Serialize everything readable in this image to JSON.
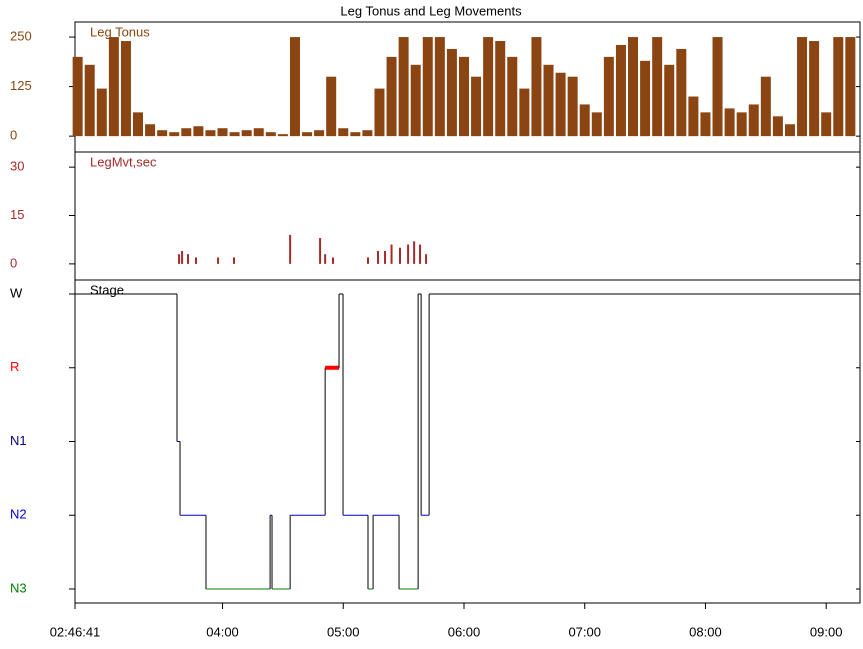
{
  "chart_data": [
    {
      "type": "bar",
      "title": "Leg Tonus and Leg Movements",
      "series": [
        {
          "name": "Leg Tonus",
          "color": "#8b4513",
          "x": [
            2.8,
            2.9,
            3.0,
            3.1,
            3.2,
            3.3,
            3.4,
            3.5,
            3.6,
            3.7,
            3.8,
            3.9,
            4.0,
            4.1,
            4.2,
            4.3,
            4.4,
            4.5,
            4.6,
            4.7,
            4.8,
            4.9,
            5.0,
            5.1,
            5.2,
            5.3,
            5.4,
            5.5,
            5.6,
            5.7,
            5.8,
            5.9,
            6.0,
            6.1,
            6.2,
            6.3,
            6.4,
            6.5,
            6.6,
            6.7,
            6.8,
            6.9,
            7.0,
            7.1,
            7.2,
            7.3,
            7.4,
            7.5,
            7.6,
            7.7,
            7.8,
            7.9,
            8.0,
            8.1,
            8.2,
            8.3,
            8.4,
            8.5,
            8.6,
            8.7,
            8.8,
            8.9,
            9.0,
            9.1,
            9.2
          ],
          "values": [
            200,
            180,
            120,
            250,
            240,
            60,
            30,
            15,
            10,
            20,
            25,
            15,
            20,
            10,
            15,
            20,
            10,
            5,
            250,
            10,
            15,
            150,
            20,
            10,
            15,
            120,
            200,
            250,
            180,
            250,
            250,
            220,
            200,
            150,
            250,
            240,
            200,
            120,
            250,
            180,
            160,
            150,
            80,
            60,
            200,
            230,
            250,
            190,
            250,
            180,
            220,
            100,
            60,
            250,
            70,
            60,
            80,
            150,
            50,
            30,
            250,
            240,
            60,
            250,
            250
          ]
        }
      ],
      "ylim": [
        -40,
        288
      ],
      "yticks": [
        0,
        125,
        250
      ]
    },
    {
      "type": "bar",
      "series": [
        {
          "name": "LegMvt,sec",
          "color": "#a52a2a",
          "x": [
            3.64,
            3.665,
            3.714,
            3.78,
            3.963,
            4.095,
            4.56,
            4.808,
            4.85,
            4.915,
            5.205,
            5.288,
            5.346,
            5.4,
            5.47,
            5.537,
            5.587,
            5.636,
            5.686
          ],
          "values": [
            3,
            4,
            3,
            2,
            2,
            2,
            9,
            8,
            3,
            2,
            2,
            4,
            4,
            6,
            5,
            6,
            7,
            6,
            3
          ]
        }
      ],
      "ylim": [
        -5,
        34.7
      ],
      "yticks": [
        0,
        15,
        30
      ]
    },
    {
      "type": "step",
      "series": [
        {
          "name": "Stage",
          "color": "#000000",
          "x": [
            2.7781,
            3.623,
            3.648,
            3.863,
            4.394,
            4.41,
            4.56,
            4.85,
            4.965,
            4.998,
            5.205,
            5.247,
            5.462,
            5.62,
            5.645,
            5.711
          ],
          "values": [
            4,
            2,
            1,
            0,
            1,
            0,
            1,
            3,
            4,
            1,
            0,
            1,
            0,
            4,
            1,
            4
          ]
        }
      ],
      "ylim": [
        -0.19,
        4.19
      ],
      "yticks": [
        {
          "value": 0,
          "label": "N3"
        },
        {
          "value": 1,
          "label": "N2"
        },
        {
          "value": 2,
          "label": "N1"
        },
        {
          "value": 3,
          "label": "R"
        },
        {
          "value": 4,
          "label": "W"
        }
      ],
      "tick_colors": [
        "#008000",
        "#0000cc",
        "#000080",
        "#ff0000",
        "#000000"
      ],
      "xlim": [
        2.7781,
        9.28
      ],
      "xticks": [
        {
          "value": 2.7781,
          "label": "02:46:41"
        },
        {
          "value": 4,
          "label": "04:00"
        },
        {
          "value": 5,
          "label": "05:00"
        },
        {
          "value": 6,
          "label": "06:00"
        },
        {
          "value": 7,
          "label": "07:00"
        },
        {
          "value": 8,
          "label": "08:00"
        },
        {
          "value": 9,
          "label": "09:00"
        }
      ]
    }
  ]
}
